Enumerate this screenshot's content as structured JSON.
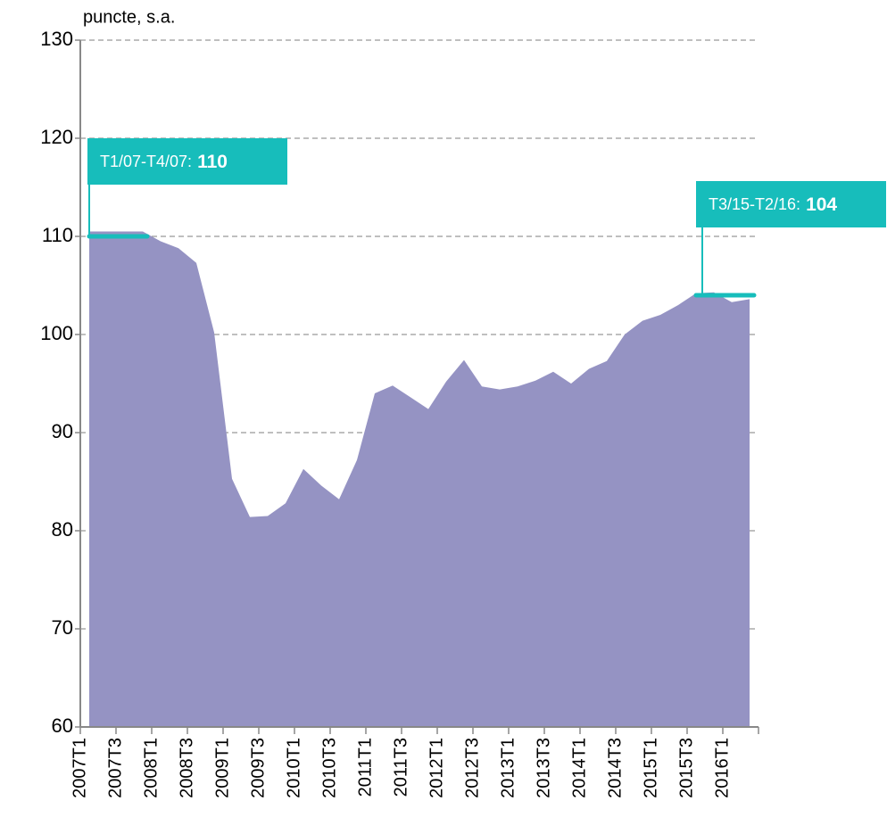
{
  "chart_data": {
    "type": "area",
    "y_label": "puncte, s.a.",
    "color": "#9593c3",
    "annotation_color": "#17bdbb",
    "categories": [
      "2007T1",
      null,
      "2007T3",
      null,
      "2008T1",
      null,
      "2008T3",
      null,
      "2009T1",
      null,
      "2009T3",
      null,
      "2010T1",
      null,
      "2010T3",
      null,
      "2011T1",
      null,
      "2011T3",
      null,
      "2012T1",
      null,
      "2012T3",
      null,
      "2013T1",
      null,
      "2013T3",
      null,
      "2014T1",
      null,
      "2014T3",
      null,
      "2015T1",
      null,
      "2015T3",
      null,
      "2016T1",
      null
    ],
    "values": [
      110.5,
      110.5,
      110.5,
      110.5,
      109.5,
      108.8,
      107.3,
      100.2,
      85.3,
      81.4,
      81.5,
      82.8,
      86.3,
      84.6,
      83.2,
      87.2,
      94.0,
      94.8,
      93.6,
      92.4,
      95.2,
      97.4,
      94.7,
      94.4,
      94.7,
      95.3,
      96.2,
      95.0,
      96.5,
      97.3,
      100.0,
      101.4,
      102.0,
      103.0,
      104.2,
      104.3,
      103.3,
      103.6
    ],
    "ylim": [
      60,
      130
    ],
    "yticks": [
      60,
      70,
      80,
      90,
      100,
      110,
      120,
      130
    ],
    "grid": true,
    "annotations": [
      {
        "label": "T1/07-T4/07:",
        "value": 110
      },
      {
        "label": "T3/15-T2/16:",
        "value": 104
      }
    ]
  }
}
